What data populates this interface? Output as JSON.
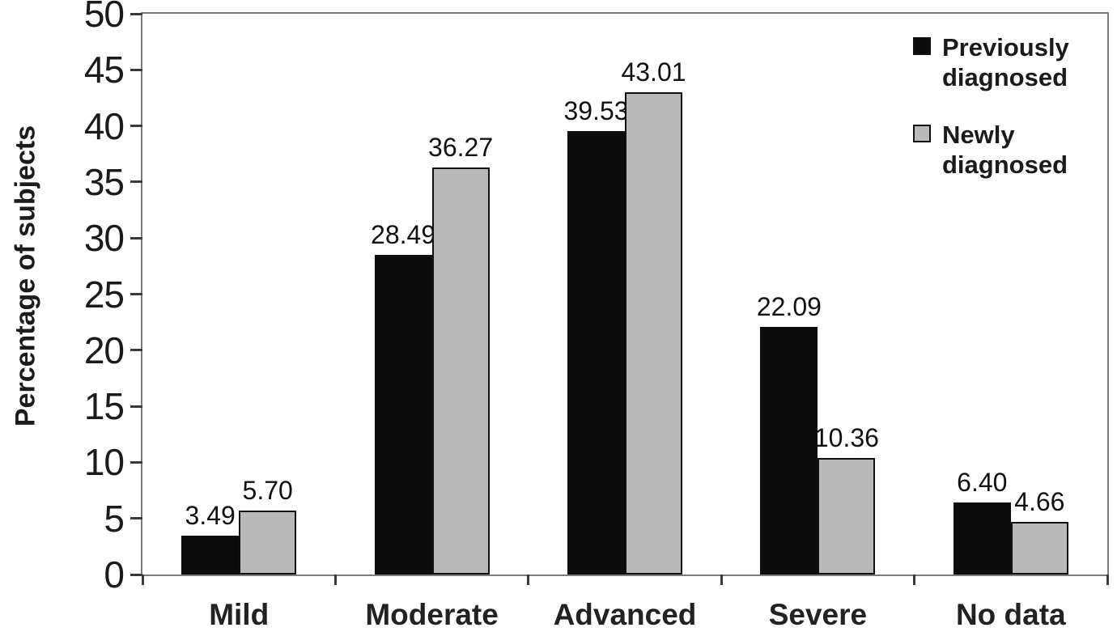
{
  "chart_data": {
    "type": "bar",
    "title": "",
    "xlabel": "",
    "ylabel": "Percentage of subjects",
    "ylim": [
      0,
      50
    ],
    "y_ticks": [
      0,
      5,
      10,
      15,
      20,
      25,
      30,
      35,
      40,
      45,
      50
    ],
    "grid": false,
    "legend_position": "top-right-inside",
    "categories": [
      "Mild",
      "Moderate",
      "Advanced",
      "Severe",
      "No data"
    ],
    "series": [
      {
        "name": "Previously diagnosed",
        "color": "#0c0c0c",
        "values": [
          3.49,
          28.49,
          39.53,
          22.09,
          6.4
        ],
        "value_labels": [
          "3.49",
          "28.49",
          "39.53",
          "22.09",
          "6.40"
        ]
      },
      {
        "name": "Newly diagnosed",
        "color": "#b9b9b9",
        "values": [
          5.7,
          36.27,
          43.01,
          10.36,
          4.66
        ],
        "value_labels": [
          "5.70",
          "36.27",
          "43.01",
          "10.36",
          "4.66"
        ]
      }
    ]
  },
  "colors": {
    "frame": "#7d7d7d",
    "tick": "#3a3a3a",
    "text": "#1b1b1b",
    "bar_previously": "#0c0c0c",
    "bar_newly": "#b9b9b9",
    "background": "#ffffff"
  }
}
